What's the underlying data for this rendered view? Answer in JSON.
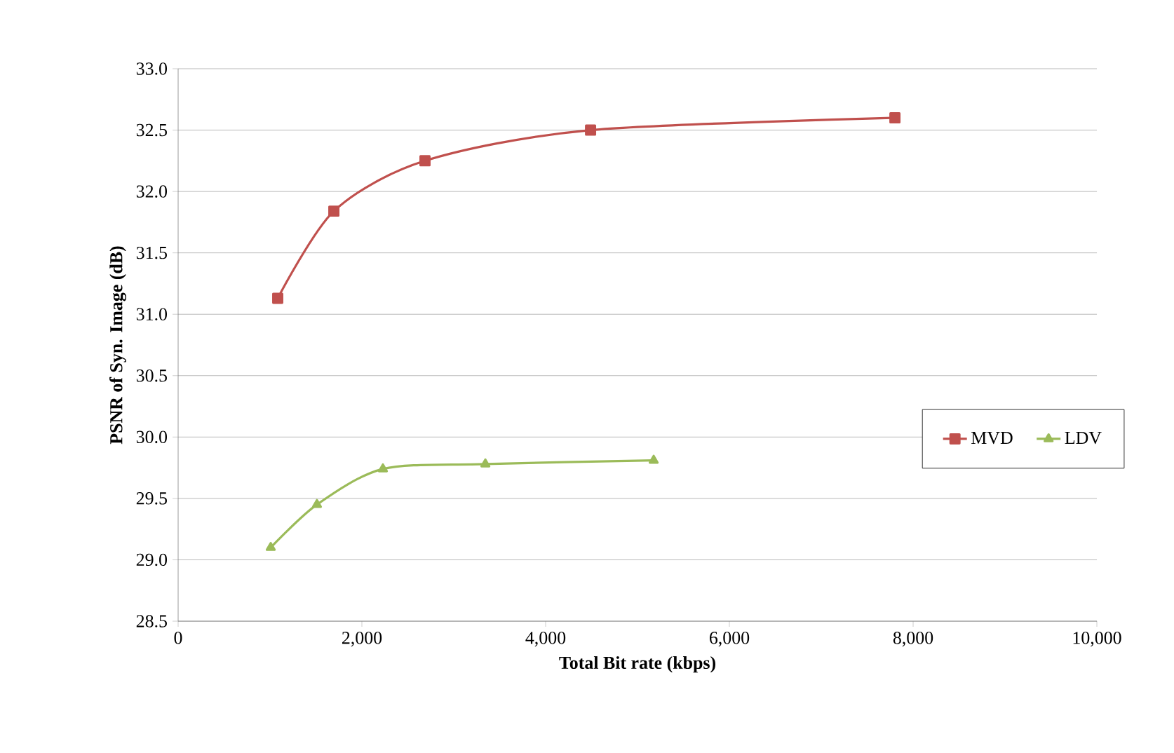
{
  "chart_data": {
    "type": "line",
    "xlabel": "Total Bit rate (kbps)",
    "ylabel": "PSNR of Syn. Image (dB)",
    "series": [
      {
        "name": "MVD",
        "color": "#c0504d",
        "marker": "square",
        "x": [
          1084,
          1695,
          2687,
          4489,
          7802
        ],
        "values": [
          31.13,
          31.84,
          32.25,
          32.5,
          32.6
        ]
      },
      {
        "name": "LDV",
        "color": "#9bbb59",
        "marker": "triangle",
        "x": [
          1008,
          1511,
          2229,
          3344,
          5176
        ],
        "values": [
          29.1,
          29.45,
          29.74,
          29.78,
          29.81
        ]
      }
    ],
    "xlim": [
      0,
      10000
    ],
    "xticks": [
      0,
      {
        "value": 2000,
        "label": "2,000"
      },
      {
        "value": 4000,
        "label": "4,000"
      },
      {
        "value": 6000,
        "label": "6,000"
      },
      {
        "value": 8000,
        "label": "8,000"
      },
      {
        "value": 10000,
        "label": "10,000"
      }
    ],
    "ylim": [
      28.5,
      33.0
    ],
    "yticks": [
      {
        "value": 28.5,
        "label": "28.5"
      },
      {
        "value": 29.0,
        "label": "29.0"
      },
      {
        "value": 29.5,
        "label": "29.5"
      },
      {
        "value": 30.0,
        "label": "30.0"
      },
      {
        "value": 30.5,
        "label": "30.5"
      },
      {
        "value": 31.0,
        "label": "31.0"
      },
      {
        "value": 31.5,
        "label": "31.5"
      },
      {
        "value": 32.0,
        "label": "32.0"
      },
      {
        "value": 32.5,
        "label": "32.5"
      },
      {
        "value": 33.0,
        "label": "33.0"
      }
    ],
    "grid": "y",
    "legend": "right",
    "line_style": "solid"
  }
}
